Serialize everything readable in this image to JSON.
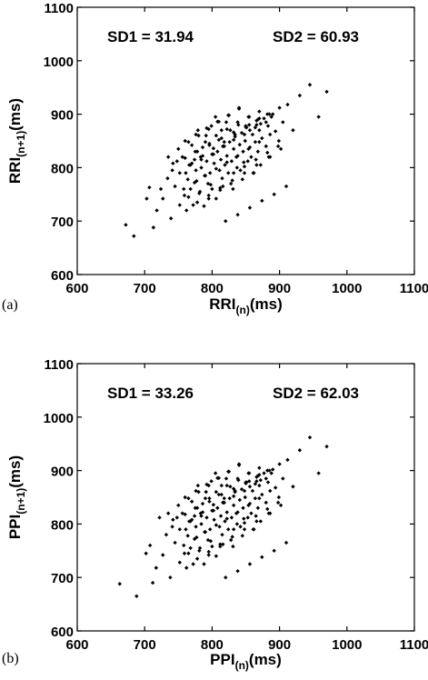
{
  "chart_data": [
    {
      "type": "scatter",
      "panel_label": "(a)",
      "xlabel_main": "RRI",
      "xlabel_sub": "(n)",
      "xlabel_unit": "(ms)",
      "ylabel_main": "RRI",
      "ylabel_sub": "(n+1)",
      "ylabel_unit": "(ms)",
      "xlim": [
        600,
        1100
      ],
      "ylim": [
        600,
        1100
      ],
      "x_ticks": [
        "600",
        "700",
        "800",
        "900",
        "1000",
        "1100"
      ],
      "y_ticks": [
        "600",
        "700",
        "800",
        "900",
        "1000",
        "1100"
      ],
      "annotations": [
        "SD1 =  31.94",
        "SD2 = 60.93"
      ],
      "grid": false,
      "x": [
        672,
        684,
        703,
        707,
        713,
        718,
        724,
        727,
        734,
        739,
        741,
        745,
        748,
        752,
        756,
        759,
        761,
        764,
        766,
        768,
        770,
        772,
        774,
        776,
        777,
        779,
        781,
        783,
        784,
        786,
        788,
        789,
        791,
        792,
        794,
        796,
        797,
        799,
        800,
        802,
        803,
        805,
        806,
        808,
        810,
        811,
        813,
        814,
        816,
        818,
        819,
        821,
        822,
        824,
        826,
        827,
        829,
        831,
        832,
        834,
        836,
        837,
        839,
        841,
        842,
        844,
        846,
        847,
        849,
        851,
        853,
        854,
        856,
        858,
        860,
        862,
        864,
        866,
        868,
        870,
        872,
        874,
        877,
        880,
        883,
        886,
        890,
        894,
        899,
        905,
        912,
        920,
        930,
        945,
        958,
        970,
        762,
        778,
        795,
        812,
        828,
        845,
        861,
        775,
        790,
        806,
        822,
        838,
        855,
        870,
        752,
        768,
        784,
        800,
        816,
        832,
        848,
        864,
        880,
        758,
        774,
        790,
        806,
        822,
        838,
        854,
        870,
        886,
        742,
        760,
        778,
        796,
        814,
        832,
        850,
        868,
        885,
        900,
        765,
        782,
        798,
        815,
        832,
        848,
        865,
        882,
        898,
        795,
        812,
        830,
        848,
        866,
        884,
        902,
        820,
        838,
        856,
        874,
        892,
        910,
        735,
        750,
        765,
        780,
        795,
        810,
        825,
        840,
        855,
        870,
        770,
        786,
        802,
        818,
        834,
        850,
        866,
        882,
        760,
        776,
        792,
        808,
        824,
        840,
        856,
        872,
        888
      ],
      "y": [
        693,
        672,
        742,
        763,
        688,
        720,
        760,
        742,
        780,
        705,
        795,
        765,
        812,
        730,
        820,
        748,
        790,
        778,
        805,
        760,
        842,
        730,
        815,
        795,
        775,
        870,
        752,
        820,
        800,
        838,
        728,
        785,
        860,
        812,
        770,
        845,
        790,
        878,
        760,
        825,
        808,
        895,
        742,
        830,
        852,
        795,
        815,
        870,
        765,
        840,
        805,
        885,
        822,
        790,
        848,
        870,
        812,
        760,
        835,
        858,
        820,
        800,
        880,
        843,
        795,
        865,
        830,
        810,
        850,
        875,
        812,
        895,
        838,
        820,
        862,
        790,
        848,
        880,
        830,
        870,
        805,
        855,
        892,
        840,
        878,
        820,
        900,
        868,
        850,
        885,
        918,
        870,
        935,
        955,
        895,
        942,
        720,
        735,
        742,
        758,
        770,
        778,
        790,
        830,
        848,
        860,
        872,
        885,
        895,
        905,
        790,
        805,
        815,
        825,
        840,
        852,
        862,
        875,
        885,
        760,
        772,
        785,
        798,
        810,
        822,
        835,
        848,
        862,
        808,
        818,
        830,
        842,
        855,
        866,
        878,
        890,
        900,
        912,
        745,
        755,
        768,
        780,
        790,
        802,
        815,
        828,
        840,
        748,
        762,
        776,
        790,
        805,
        820,
        835,
        700,
        712,
        725,
        738,
        750,
        765,
        820,
        835,
        848,
        860,
        872,
        886,
        898,
        910,
        880,
        892,
        808,
        822,
        836,
        848,
        862,
        876,
        888,
        900,
        850,
        862,
        874,
        886,
        898,
        912,
        870,
        882,
        895
      ]
    },
    {
      "type": "scatter",
      "panel_label": "(b)",
      "xlabel_main": "PPI",
      "xlabel_sub": "(n)",
      "xlabel_unit": "(ms)",
      "ylabel_main": "PPI",
      "ylabel_sub": "(n+1)",
      "ylabel_unit": "(ms)",
      "xlim": [
        600,
        1100
      ],
      "ylim": [
        600,
        1100
      ],
      "x_ticks": [
        "600",
        "700",
        "800",
        "900",
        "1000",
        "1100"
      ],
      "y_ticks": [
        "600",
        "700",
        "800",
        "900",
        "1000",
        "1100"
      ],
      "annotations": [
        "SD1 = 33.26",
        "SD2 = 62.03"
      ],
      "grid": false,
      "x": [
        663,
        688,
        702,
        708,
        712,
        717,
        722,
        727,
        732,
        738,
        741,
        745,
        748,
        752,
        756,
        759,
        761,
        764,
        766,
        768,
        770,
        772,
        774,
        776,
        777,
        779,
        781,
        783,
        784,
        786,
        788,
        789,
        791,
        792,
        794,
        796,
        797,
        799,
        800,
        802,
        803,
        805,
        806,
        808,
        810,
        811,
        813,
        814,
        816,
        818,
        819,
        821,
        822,
        824,
        826,
        827,
        829,
        831,
        832,
        834,
        836,
        837,
        839,
        841,
        842,
        844,
        846,
        847,
        849,
        851,
        853,
        854,
        856,
        858,
        860,
        862,
        864,
        866,
        868,
        870,
        872,
        874,
        877,
        880,
        883,
        886,
        890,
        894,
        899,
        905,
        912,
        920,
        930,
        945,
        958,
        970,
        762,
        778,
        795,
        812,
        828,
        845,
        861,
        775,
        790,
        806,
        822,
        838,
        855,
        870,
        752,
        768,
        784,
        800,
        816,
        832,
        848,
        864,
        880,
        758,
        774,
        790,
        806,
        822,
        838,
        854,
        870,
        886,
        742,
        760,
        778,
        796,
        814,
        832,
        850,
        868,
        885,
        900,
        765,
        782,
        798,
        815,
        832,
        848,
        865,
        882,
        898,
        795,
        812,
        830,
        848,
        866,
        884,
        902,
        820,
        838,
        856,
        874,
        892,
        910,
        735,
        750,
        765,
        780,
        795,
        810,
        825,
        840,
        855,
        870,
        770,
        786,
        802,
        818,
        834,
        850,
        866,
        882,
        760,
        776,
        792,
        808,
        824,
        840,
        856,
        872,
        888
      ],
      "y": [
        688,
        665,
        745,
        760,
        690,
        718,
        812,
        742,
        780,
        700,
        795,
        765,
        812,
        728,
        820,
        745,
        790,
        778,
        805,
        755,
        842,
        725,
        815,
        795,
        775,
        872,
        750,
        820,
        800,
        838,
        725,
        785,
        860,
        812,
        770,
        848,
        790,
        880,
        758,
        825,
        808,
        895,
        740,
        830,
        855,
        795,
        815,
        872,
        762,
        840,
        805,
        885,
        822,
        790,
        848,
        870,
        812,
        758,
        835,
        860,
        820,
        800,
        882,
        845,
        795,
        865,
        830,
        810,
        850,
        878,
        812,
        895,
        838,
        820,
        862,
        790,
        848,
        880,
        830,
        872,
        805,
        855,
        895,
        840,
        878,
        820,
        902,
        868,
        850,
        885,
        920,
        870,
        938,
        962,
        895,
        945,
        718,
        735,
        742,
        758,
        770,
        778,
        790,
        830,
        848,
        860,
        872,
        885,
        895,
        905,
        790,
        805,
        815,
        825,
        840,
        852,
        862,
        875,
        885,
        760,
        772,
        785,
        798,
        810,
        822,
        835,
        848,
        862,
        808,
        818,
        830,
        842,
        855,
        866,
        878,
        890,
        900,
        912,
        745,
        755,
        768,
        780,
        790,
        802,
        815,
        828,
        840,
        748,
        762,
        776,
        790,
        805,
        820,
        835,
        700,
        712,
        725,
        738,
        750,
        765,
        820,
        835,
        848,
        860,
        872,
        886,
        898,
        910,
        880,
        892,
        808,
        822,
        836,
        848,
        862,
        876,
        888,
        900,
        850,
        862,
        874,
        886,
        898,
        912,
        870,
        882,
        895
      ]
    }
  ]
}
